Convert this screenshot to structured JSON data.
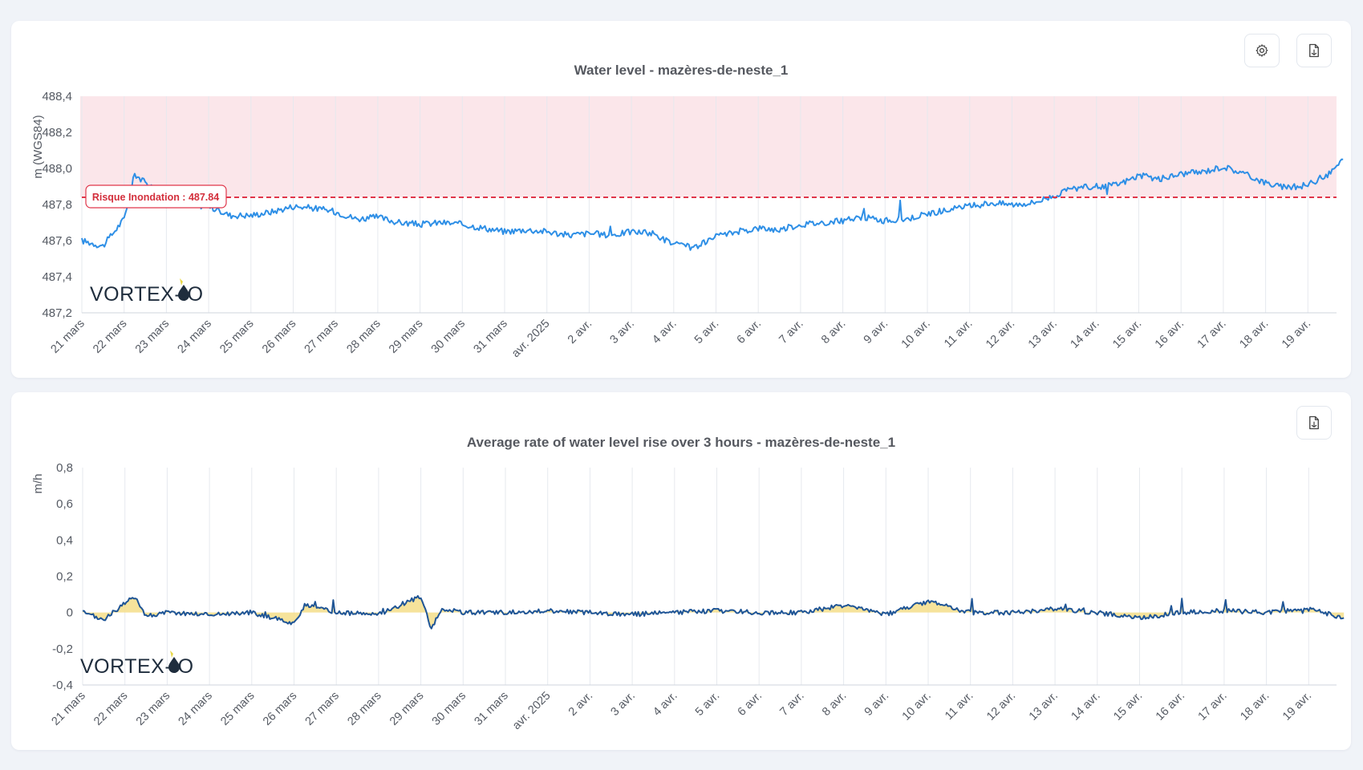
{
  "colors": {
    "level_line": "#2e8fe6",
    "rate_line": "#1f5596",
    "rate_fill": "#f4de8a",
    "danger_zone": "#fbe6ea",
    "threshold": "#e0364a"
  },
  "logo": {
    "text": "VORTEX-IO"
  },
  "x_tick_labels": [
    "21 mars",
    "22 mars",
    "23 mars",
    "24 mars",
    "25 mars",
    "26 mars",
    "27 mars",
    "28 mars",
    "29 mars",
    "30 mars",
    "31 mars",
    "avr. 2025",
    "2 avr.",
    "3 avr.",
    "4 avr.",
    "5 avr.",
    "6 avr.",
    "7 avr.",
    "8 avr.",
    "9 avr.",
    "10 avr.",
    "11 avr.",
    "12 avr.",
    "13 avr.",
    "14 avr.",
    "15 avr.",
    "16 avr.",
    "17 avr.",
    "18 avr.",
    "19 avr."
  ],
  "level_panel": {
    "title": "Water level - mazères-de-neste_1",
    "ylabel": "m (WGS84)",
    "y_tick_labels": [
      "488,4",
      "488,2",
      "488,0",
      "487,8",
      "487,6",
      "487,4",
      "487,2"
    ],
    "threshold_label": "Risque Inondation : 487.84",
    "settings_icon": "gear-icon",
    "export_icon": "file-export-icon"
  },
  "rate_panel": {
    "title": "Average rate of water level rise over 3 hours - mazères-de-neste_1",
    "ylabel": "m/h",
    "y_tick_labels": [
      "0,8",
      "0,6",
      "0,4",
      "0,2",
      "0",
      "-0,2",
      "-0,4"
    ],
    "export_icon": "file-export-icon"
  },
  "chart_data": [
    {
      "type": "line",
      "title": "Water level - mazères-de-neste_1",
      "ylabel": "m (WGS84)",
      "xlabel": "",
      "x_ticks": [
        "21 mars",
        "22 mars",
        "23 mars",
        "24 mars",
        "25 mars",
        "26 mars",
        "27 mars",
        "28 mars",
        "29 mars",
        "30 mars",
        "31 mars",
        "avr. 2025",
        "2 avr.",
        "3 avr.",
        "4 avr.",
        "5 avr.",
        "6 avr.",
        "7 avr.",
        "8 avr.",
        "9 avr.",
        "10 avr.",
        "11 avr.",
        "12 avr.",
        "13 avr.",
        "14 avr.",
        "15 avr.",
        "16 avr.",
        "17 avr.",
        "18 avr.",
        "19 avr."
      ],
      "ylim": [
        487.2,
        488.4
      ],
      "grid": true,
      "threshold": {
        "label": "Risque Inondation : 487.84",
        "value": 487.84
      },
      "danger_zone": [
        487.84,
        488.4
      ],
      "series": [
        {
          "x": [
            "2025-03-21",
            "2025-03-21 12:00",
            "2025-03-22",
            "2025-03-22 06:00",
            "2025-03-22 12:00",
            "2025-03-23",
            "2025-03-23 12:00",
            "2025-03-24",
            "2025-03-24 12:00",
            "2025-03-25",
            "2025-03-25 12:00",
            "2025-03-26",
            "2025-03-26 12:00",
            "2025-03-27",
            "2025-03-27 12:00",
            "2025-03-28",
            "2025-03-28 12:00",
            "2025-03-29",
            "2025-03-29 12:00",
            "2025-03-30",
            "2025-03-30 12:00",
            "2025-03-31",
            "2025-03-31 12:00",
            "2025-04-01",
            "2025-04-01 12:00",
            "2025-04-02",
            "2025-04-02 12:00",
            "2025-04-03",
            "2025-04-03 12:00",
            "2025-04-04",
            "2025-04-04 12:00",
            "2025-04-05",
            "2025-04-05 12:00",
            "2025-04-06",
            "2025-04-06 12:00",
            "2025-04-07",
            "2025-04-07 12:00",
            "2025-04-08",
            "2025-04-08 12:00",
            "2025-04-09",
            "2025-04-09 12:00",
            "2025-04-10",
            "2025-04-10 12:00",
            "2025-04-11",
            "2025-04-11 12:00",
            "2025-04-12",
            "2025-04-12 12:00",
            "2025-04-13",
            "2025-04-13 12:00",
            "2025-04-14",
            "2025-04-14 12:00",
            "2025-04-15",
            "2025-04-15 12:00",
            "2025-04-16",
            "2025-04-16 12:00",
            "2025-04-17",
            "2025-04-17 12:00",
            "2025-04-18",
            "2025-04-18 12:00",
            "2025-04-19",
            "2025-04-19 12:00",
            "2025-04-19 20:00"
          ],
          "values": [
            487.6,
            487.57,
            487.72,
            487.97,
            487.92,
            487.82,
            487.8,
            487.79,
            487.74,
            487.74,
            487.76,
            487.79,
            487.78,
            487.76,
            487.72,
            487.73,
            487.7,
            487.69,
            487.7,
            487.69,
            487.67,
            487.65,
            487.66,
            487.65,
            487.63,
            487.64,
            487.63,
            487.65,
            487.64,
            487.58,
            487.56,
            487.62,
            487.65,
            487.67,
            487.66,
            487.69,
            487.7,
            487.71,
            487.73,
            487.71,
            487.72,
            487.75,
            487.77,
            487.79,
            487.81,
            487.8,
            487.81,
            487.85,
            487.89,
            487.9,
            487.91,
            487.96,
            487.94,
            487.97,
            487.98,
            488.01,
            487.97,
            487.92,
            487.89,
            487.91,
            487.97,
            488.05
          ]
        }
      ]
    },
    {
      "type": "area",
      "title": "Average rate of water level rise over 3 hours - mazères-de-neste_1",
      "ylabel": "m/h",
      "xlabel": "",
      "x_ticks": [
        "21 mars",
        "22 mars",
        "23 mars",
        "24 mars",
        "25 mars",
        "26 mars",
        "27 mars",
        "28 mars",
        "29 mars",
        "30 mars",
        "31 mars",
        "avr. 2025",
        "2 avr.",
        "3 avr.",
        "4 avr.",
        "5 avr.",
        "6 avr.",
        "7 avr.",
        "8 avr.",
        "9 avr.",
        "10 avr.",
        "11 avr.",
        "12 avr.",
        "13 avr.",
        "14 avr.",
        "15 avr.",
        "16 avr.",
        "17 avr.",
        "18 avr.",
        "19 avr."
      ],
      "ylim": [
        -0.4,
        0.8
      ],
      "grid": true,
      "series": [
        {
          "x": [
            "2025-03-21",
            "2025-03-21 12:00",
            "2025-03-22",
            "2025-03-22 06:00",
            "2025-03-22 12:00",
            "2025-03-23",
            "2025-03-24",
            "2025-03-25",
            "2025-03-26",
            "2025-03-26 06:00",
            "2025-03-27",
            "2025-03-28",
            "2025-03-29",
            "2025-03-29 06:00",
            "2025-03-29 12:00",
            "2025-03-30",
            "2025-03-31",
            "2025-04-01",
            "2025-04-02",
            "2025-04-03",
            "2025-04-04",
            "2025-04-05",
            "2025-04-06",
            "2025-04-07",
            "2025-04-08",
            "2025-04-09",
            "2025-04-10",
            "2025-04-11",
            "2025-04-12",
            "2025-04-13",
            "2025-04-14",
            "2025-04-15",
            "2025-04-16",
            "2025-04-17",
            "2025-04-18",
            "2025-04-19",
            "2025-04-19 20:00"
          ],
          "values": [
            0.0,
            -0.04,
            0.05,
            0.09,
            -0.02,
            0.0,
            -0.01,
            0.0,
            -0.06,
            0.04,
            0.0,
            -0.01,
            0.09,
            -0.09,
            0.02,
            0.0,
            0.0,
            0.01,
            0.0,
            -0.01,
            0.0,
            0.01,
            0.0,
            0.0,
            0.04,
            -0.01,
            0.06,
            0.0,
            0.0,
            0.02,
            0.0,
            -0.03,
            0.0,
            0.01,
            0.0,
            0.02,
            -0.03
          ]
        }
      ]
    }
  ]
}
